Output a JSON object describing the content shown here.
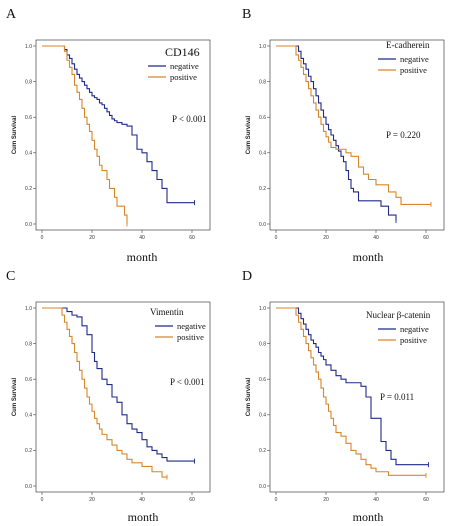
{
  "chart_data": [
    {
      "type": "line",
      "panel_label": "A",
      "title": "CD146",
      "xlabel": "month",
      "ylabel": "Cum Survival",
      "p_value": "P < 0.001",
      "xlim": [
        0,
        64
      ],
      "ylim": [
        0,
        1.0
      ],
      "xticks": [
        "0",
        "20",
        "40",
        "60"
      ],
      "yticks": [
        "0.0",
        "0.2",
        "0.4",
        "0.6",
        "0.8",
        "1.0"
      ],
      "legend_position": "top-right",
      "series": [
        {
          "name": "negative",
          "color": "#1f2a8a",
          "x": [
            0,
            7,
            9,
            10,
            11,
            12,
            13,
            14,
            15,
            16,
            17,
            18,
            19,
            20,
            21,
            22,
            23,
            24,
            25,
            26,
            27,
            28,
            29,
            30,
            32,
            34,
            36,
            38,
            40,
            42,
            44,
            46,
            48,
            50,
            55,
            61
          ],
          "y": [
            1.0,
            1.0,
            0.98,
            0.95,
            0.93,
            0.9,
            0.87,
            0.84,
            0.82,
            0.8,
            0.78,
            0.76,
            0.74,
            0.72,
            0.71,
            0.7,
            0.68,
            0.67,
            0.65,
            0.63,
            0.61,
            0.59,
            0.58,
            0.57,
            0.56,
            0.55,
            0.5,
            0.42,
            0.4,
            0.35,
            0.3,
            0.25,
            0.2,
            0.12,
            0.12,
            0.12
          ]
        },
        {
          "name": "positive",
          "color": "#d8862a",
          "x": [
            0,
            7,
            9,
            10,
            11,
            12,
            13,
            14,
            15,
            16,
            17,
            18,
            19,
            20,
            21,
            22,
            23,
            24,
            25,
            26,
            27,
            28,
            29,
            30,
            31,
            32,
            33,
            34
          ],
          "y": [
            1.0,
            1.0,
            0.97,
            0.92,
            0.88,
            0.84,
            0.78,
            0.74,
            0.7,
            0.65,
            0.6,
            0.56,
            0.52,
            0.47,
            0.42,
            0.38,
            0.33,
            0.3,
            0.3,
            0.25,
            0.2,
            0.2,
            0.15,
            0.1,
            0.1,
            0.1,
            0.05,
            0.0
          ]
        }
      ]
    },
    {
      "type": "line",
      "panel_label": "B",
      "title": "E-cadherein",
      "xlabel": "month",
      "ylabel": "Cum Survival",
      "p_value": "P = 0.220",
      "xlim": [
        0,
        64
      ],
      "ylim": [
        0,
        1.0
      ],
      "xticks": [
        "0",
        "20",
        "40",
        "60"
      ],
      "yticks": [
        "0.0",
        "0.2",
        "0.4",
        "0.6",
        "0.8",
        "1.0"
      ],
      "legend_position": "top-right",
      "series": [
        {
          "name": "negative",
          "color": "#1f2a8a",
          "x": [
            0,
            7,
            9,
            10,
            11,
            12,
            13,
            14,
            15,
            16,
            17,
            18,
            19,
            20,
            21,
            22,
            23,
            24,
            25,
            26,
            27,
            28,
            29,
            30,
            31,
            33,
            35,
            38,
            42,
            45,
            47,
            48
          ],
          "y": [
            1.0,
            1.0,
            0.97,
            0.93,
            0.9,
            0.87,
            0.83,
            0.8,
            0.76,
            0.72,
            0.68,
            0.64,
            0.6,
            0.56,
            0.53,
            0.5,
            0.47,
            0.44,
            0.41,
            0.38,
            0.35,
            0.3,
            0.25,
            0.2,
            0.18,
            0.13,
            0.13,
            0.13,
            0.1,
            0.05,
            0.05,
            0.02
          ]
        },
        {
          "name": "positive",
          "color": "#d8862a",
          "x": [
            0,
            7,
            8,
            9,
            10,
            11,
            12,
            13,
            14,
            15,
            16,
            17,
            18,
            19,
            20,
            21,
            22,
            24,
            26,
            28,
            30,
            33,
            35,
            37,
            40,
            45,
            48,
            50,
            55,
            62
          ],
          "y": [
            1.0,
            1.0,
            0.95,
            0.92,
            0.88,
            0.84,
            0.8,
            0.76,
            0.72,
            0.68,
            0.64,
            0.6,
            0.56,
            0.52,
            0.49,
            0.46,
            0.43,
            0.42,
            0.42,
            0.4,
            0.38,
            0.32,
            0.28,
            0.25,
            0.22,
            0.18,
            0.15,
            0.11,
            0.11,
            0.11
          ]
        }
      ]
    },
    {
      "type": "line",
      "panel_label": "C",
      "title": "Vimentin",
      "xlabel": "month",
      "ylabel": "Cum Survival",
      "p_value": "P < 0.001",
      "xlim": [
        0,
        64
      ],
      "ylim": [
        0,
        1.0
      ],
      "xticks": [
        "0",
        "20",
        "40",
        "60"
      ],
      "yticks": [
        "0.0",
        "0.2",
        "0.4",
        "0.6",
        "0.8",
        "1.0"
      ],
      "legend_position": "top-right",
      "series": [
        {
          "name": "negative",
          "color": "#1f2a8a",
          "x": [
            0,
            8,
            10,
            12,
            14,
            16,
            18,
            20,
            21,
            22,
            24,
            26,
            28,
            30,
            32,
            34,
            36,
            38,
            40,
            42,
            44,
            46,
            48,
            50,
            55,
            61
          ],
          "y": [
            1.0,
            1.0,
            0.98,
            0.96,
            0.95,
            0.9,
            0.85,
            0.75,
            0.7,
            0.66,
            0.6,
            0.57,
            0.5,
            0.47,
            0.4,
            0.35,
            0.32,
            0.3,
            0.26,
            0.22,
            0.2,
            0.18,
            0.16,
            0.14,
            0.14,
            0.14
          ]
        },
        {
          "name": "positive",
          "color": "#d8862a",
          "x": [
            0,
            7,
            8,
            9,
            10,
            11,
            12,
            13,
            14,
            15,
            16,
            17,
            18,
            19,
            20,
            21,
            22,
            23,
            24,
            26,
            28,
            30,
            32,
            34,
            36,
            40,
            44,
            48,
            50
          ],
          "y": [
            1.0,
            1.0,
            0.96,
            0.92,
            0.88,
            0.84,
            0.8,
            0.75,
            0.7,
            0.65,
            0.6,
            0.55,
            0.5,
            0.46,
            0.42,
            0.38,
            0.35,
            0.32,
            0.29,
            0.26,
            0.23,
            0.2,
            0.18,
            0.15,
            0.13,
            0.11,
            0.08,
            0.05,
            0.05
          ]
        }
      ]
    },
    {
      "type": "line",
      "panel_label": "D",
      "title": "Nuclear β-catenin",
      "xlabel": "month",
      "ylabel": "Cum Survival",
      "p_value": "P = 0.011",
      "xlim": [
        0,
        64
      ],
      "ylim": [
        0,
        1.0
      ],
      "xticks": [
        "0",
        "20",
        "40",
        "60"
      ],
      "yticks": [
        "0.0",
        "0.2",
        "0.4",
        "0.6",
        "0.8",
        "1.0"
      ],
      "legend_position": "top-right",
      "series": [
        {
          "name": "negative",
          "color": "#1f2a8a",
          "x": [
            0,
            7,
            9,
            10,
            11,
            12,
            13,
            14,
            15,
            16,
            17,
            18,
            19,
            20,
            22,
            24,
            26,
            28,
            30,
            32,
            34,
            36,
            38,
            40,
            42,
            44,
            46,
            48,
            50,
            55,
            61
          ],
          "y": [
            1.0,
            1.0,
            0.97,
            0.94,
            0.91,
            0.88,
            0.85,
            0.82,
            0.8,
            0.78,
            0.75,
            0.73,
            0.71,
            0.68,
            0.65,
            0.62,
            0.6,
            0.58,
            0.58,
            0.58,
            0.56,
            0.5,
            0.38,
            0.38,
            0.25,
            0.2,
            0.15,
            0.12,
            0.12,
            0.12,
            0.12
          ]
        },
        {
          "name": "positive",
          "color": "#d8862a",
          "x": [
            0,
            7,
            8,
            9,
            10,
            11,
            12,
            13,
            14,
            15,
            16,
            17,
            18,
            19,
            20,
            21,
            22,
            23,
            24,
            26,
            28,
            30,
            32,
            34,
            36,
            38,
            40,
            45,
            48,
            50,
            55,
            60
          ],
          "y": [
            1.0,
            1.0,
            0.96,
            0.92,
            0.88,
            0.84,
            0.8,
            0.76,
            0.72,
            0.68,
            0.64,
            0.6,
            0.55,
            0.5,
            0.46,
            0.42,
            0.38,
            0.34,
            0.3,
            0.28,
            0.24,
            0.2,
            0.18,
            0.15,
            0.12,
            0.1,
            0.08,
            0.06,
            0.06,
            0.06,
            0.06,
            0.06
          ]
        }
      ]
    }
  ]
}
